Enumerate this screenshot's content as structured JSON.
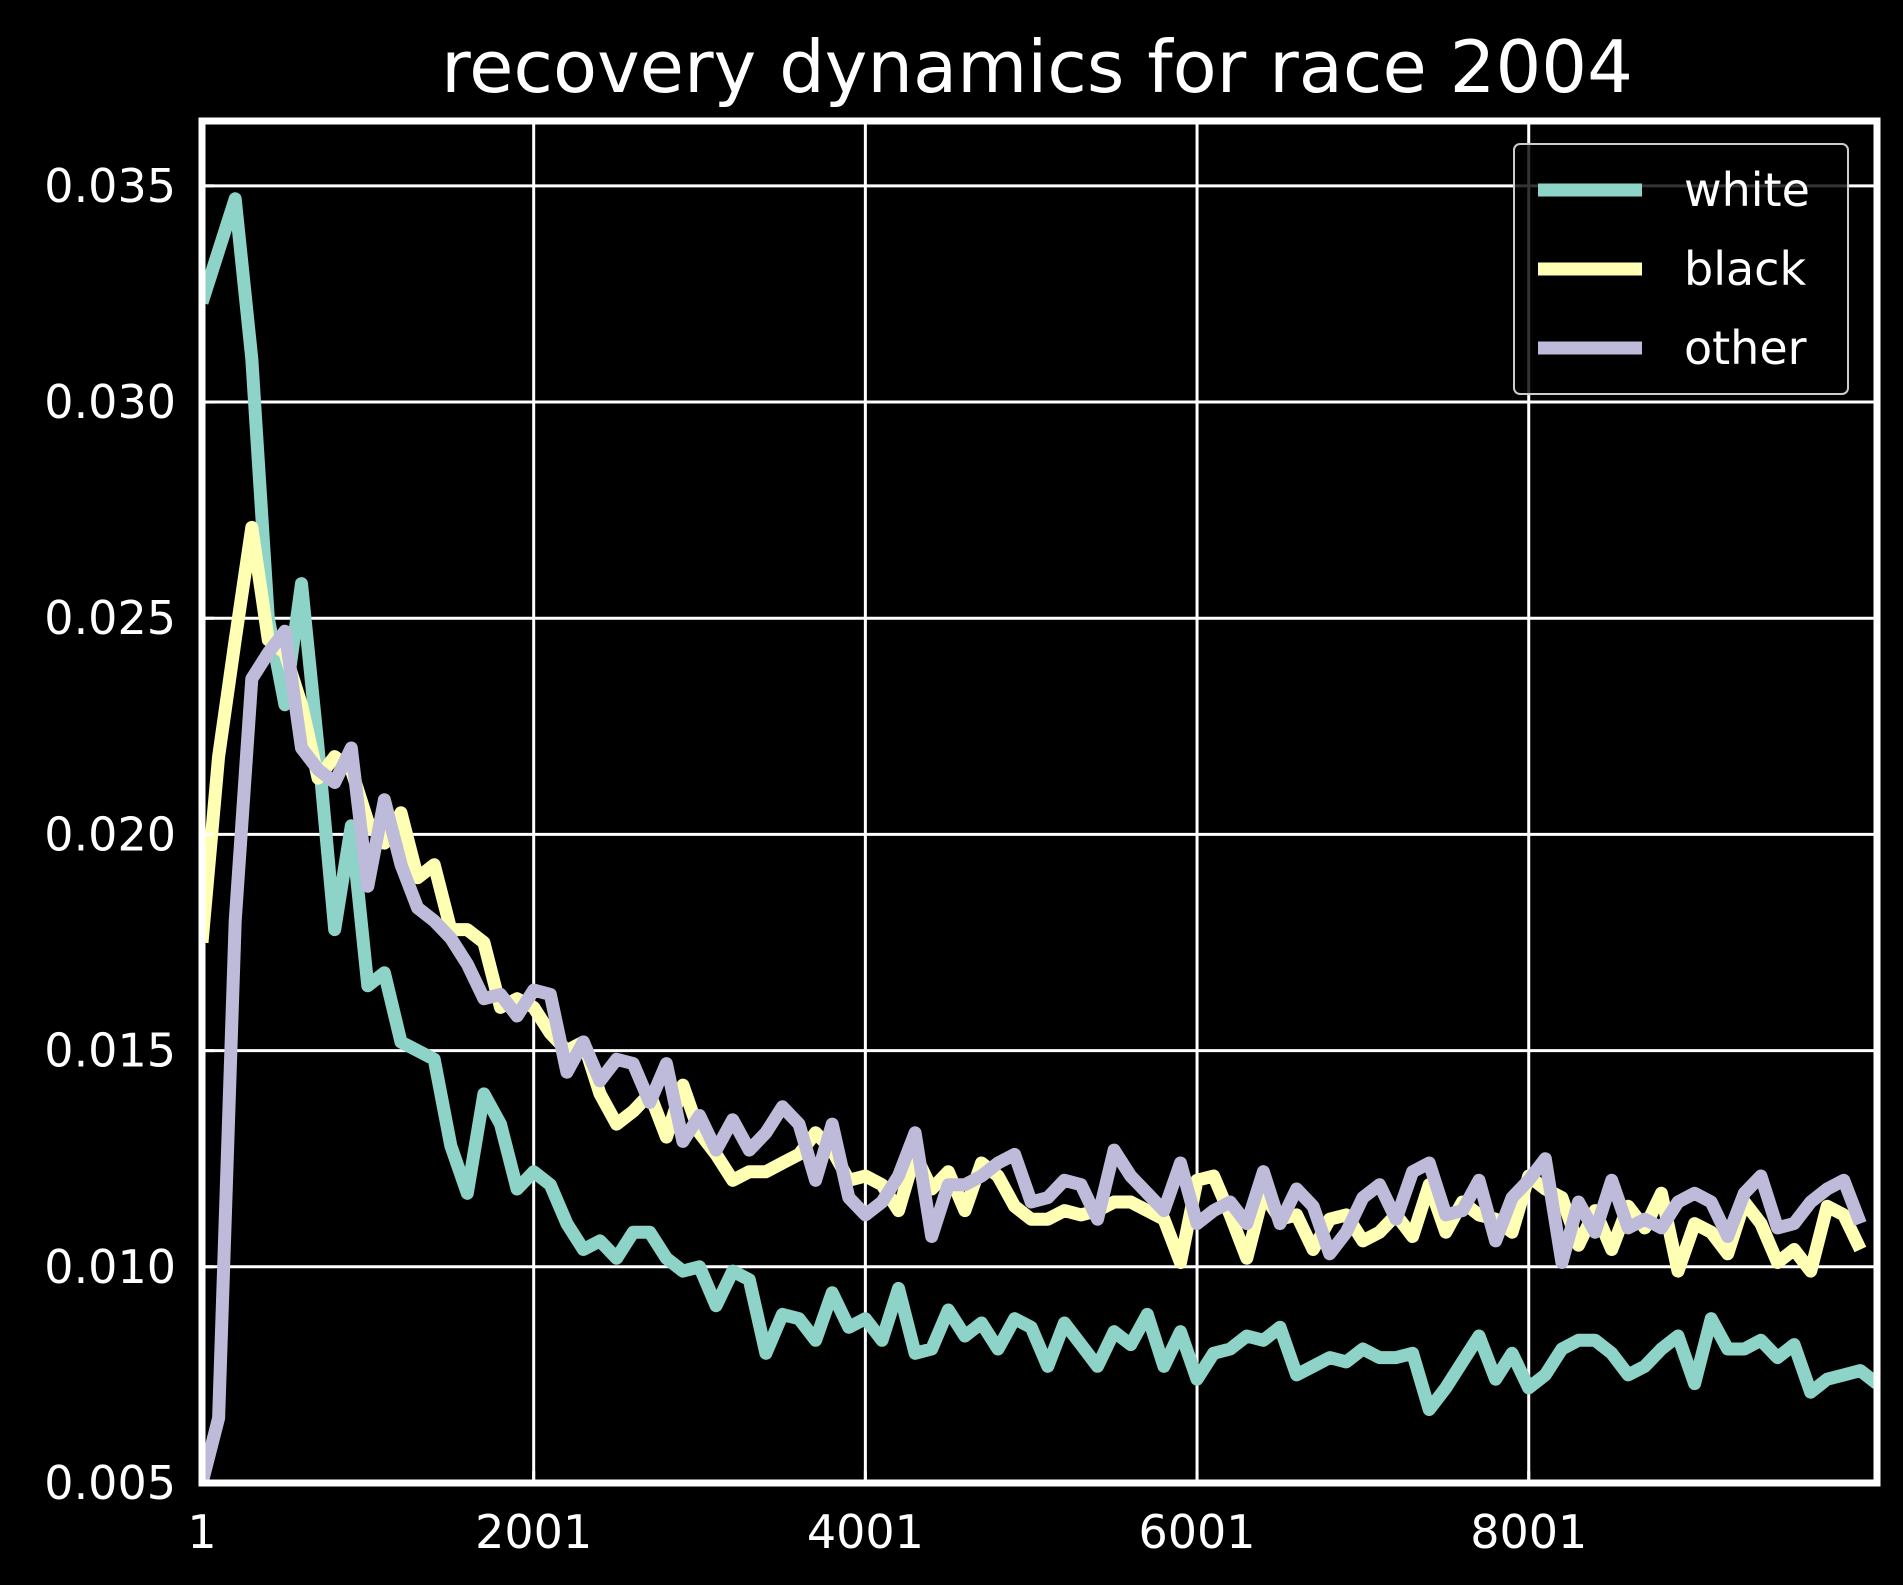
{
  "chart_data": {
    "type": "line",
    "title": "recovery dynamics for race 2004",
    "xlabel": "",
    "ylabel": "",
    "xlim": [
      1,
      10101
    ],
    "ylim": [
      0.005,
      0.0365
    ],
    "x_ticks": [
      1,
      2001,
      4001,
      6001,
      8001
    ],
    "x_tick_labels": [
      "1",
      "2001",
      "4001",
      "6001",
      "8001"
    ],
    "y_ticks": [
      0.005,
      0.01,
      0.015,
      0.02,
      0.025,
      0.03,
      0.035
    ],
    "y_tick_labels": [
      "0.005",
      "0.010",
      "0.015",
      "0.020",
      "0.025",
      "0.030",
      "0.035"
    ],
    "grid": true,
    "legend": "top-right",
    "x_step": 100,
    "series": [
      {
        "name": "white",
        "color": "#8dd3c7",
        "values": [
          0.0323,
          0.0335,
          0.0347,
          0.031,
          0.025,
          0.023,
          0.0258,
          0.022,
          0.0178,
          0.0202,
          0.0165,
          0.0168,
          0.0152,
          0.015,
          0.0148,
          0.0128,
          0.0117,
          0.014,
          0.0133,
          0.0118,
          0.0122,
          0.0119,
          0.011,
          0.0104,
          0.0106,
          0.0102,
          0.0108,
          0.0108,
          0.0102,
          0.0099,
          0.01,
          0.0091,
          0.0099,
          0.0097,
          0.008,
          0.0089,
          0.0088,
          0.0083,
          0.0094,
          0.0086,
          0.0088,
          0.0083,
          0.0095,
          0.008,
          0.0081,
          0.009,
          0.0084,
          0.0087,
          0.0081,
          0.0088,
          0.0086,
          0.0077,
          0.0087,
          0.0082,
          0.0077,
          0.0085,
          0.0082,
          0.0089,
          0.0077,
          0.0085,
          0.0074,
          0.008,
          0.0081,
          0.0084,
          0.0083,
          0.0086,
          0.0075,
          0.0077,
          0.0079,
          0.0078,
          0.0081,
          0.0079,
          0.0079,
          0.008,
          0.0067,
          0.0072,
          0.0078,
          0.0084,
          0.0074,
          0.008,
          0.0072,
          0.0075,
          0.0081,
          0.0083,
          0.0083,
          0.008,
          0.0075,
          0.0077,
          0.0081,
          0.0084,
          0.0073,
          0.0088,
          0.0081,
          0.0081,
          0.0083,
          0.0079,
          0.0082,
          0.0071,
          0.0074,
          0.0075,
          0.0076,
          0.0073
        ]
      },
      {
        "name": "black",
        "color": "#ffffb3",
        "values": [
          0.0175,
          0.0218,
          0.0245,
          0.0271,
          0.0245,
          0.0242,
          0.023,
          0.0213,
          0.0218,
          0.0215,
          0.0203,
          0.0198,
          0.0205,
          0.019,
          0.0193,
          0.0178,
          0.0178,
          0.0175,
          0.016,
          0.0162,
          0.016,
          0.0154,
          0.015,
          0.0152,
          0.014,
          0.0133,
          0.0136,
          0.014,
          0.013,
          0.0142,
          0.0131,
          0.0126,
          0.012,
          0.0122,
          0.0122,
          0.0124,
          0.0126,
          0.0131,
          0.0127,
          0.012,
          0.0121,
          0.0119,
          0.0113,
          0.0126,
          0.0118,
          0.0122,
          0.0113,
          0.0124,
          0.0121,
          0.0114,
          0.0111,
          0.0111,
          0.0113,
          0.0112,
          0.0113,
          0.0115,
          0.0115,
          0.0113,
          0.0111,
          0.0101,
          0.012,
          0.0121,
          0.0112,
          0.0102,
          0.0117,
          0.0111,
          0.0112,
          0.0104,
          0.0111,
          0.0112,
          0.0106,
          0.0108,
          0.0112,
          0.0107,
          0.0119,
          0.0108,
          0.0115,
          0.0112,
          0.0111,
          0.0108,
          0.0121,
          0.0118,
          0.0116,
          0.0105,
          0.0113,
          0.0104,
          0.0114,
          0.0109,
          0.0117,
          0.0099,
          0.011,
          0.0108,
          0.0103,
          0.0115,
          0.011,
          0.0101,
          0.0104,
          0.0099,
          0.0114,
          0.0112,
          0.0104
        ]
      },
      {
        "name": "other",
        "color": "#bebada",
        "values": [
          0.005,
          0.0065,
          0.018,
          0.0236,
          0.0242,
          0.0247,
          0.022,
          0.0215,
          0.0212,
          0.022,
          0.0188,
          0.0208,
          0.0193,
          0.0183,
          0.018,
          0.0176,
          0.017,
          0.0162,
          0.0163,
          0.0158,
          0.0164,
          0.0163,
          0.0145,
          0.0152,
          0.0143,
          0.0148,
          0.0147,
          0.0138,
          0.0147,
          0.0129,
          0.0135,
          0.0127,
          0.0134,
          0.0127,
          0.0131,
          0.0137,
          0.0133,
          0.012,
          0.0133,
          0.0116,
          0.0112,
          0.0115,
          0.0121,
          0.0131,
          0.0107,
          0.0119,
          0.0119,
          0.0121,
          0.0124,
          0.0126,
          0.0115,
          0.0116,
          0.012,
          0.0119,
          0.0111,
          0.0127,
          0.0121,
          0.0117,
          0.0113,
          0.0124,
          0.011,
          0.0113,
          0.0115,
          0.011,
          0.0122,
          0.011,
          0.0118,
          0.0114,
          0.0103,
          0.0108,
          0.0116,
          0.0119,
          0.0111,
          0.0122,
          0.0124,
          0.0112,
          0.0113,
          0.012,
          0.0106,
          0.0116,
          0.012,
          0.0125,
          0.0101,
          0.0115,
          0.0108,
          0.012,
          0.0109,
          0.0111,
          0.0109,
          0.0115,
          0.0117,
          0.0115,
          0.0107,
          0.0117,
          0.0121,
          0.0109,
          0.011,
          0.0115,
          0.0118,
          0.012,
          0.011
        ]
      }
    ]
  }
}
